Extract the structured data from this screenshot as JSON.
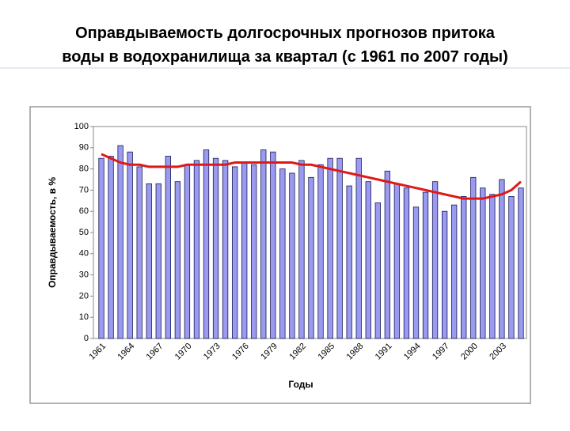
{
  "chart_data": {
    "type": "bar",
    "title": [
      "Оправдываемость долгосрочных прогнозов притока",
      "воды в водохранилища за квартал (с 1961 по 2007 годы)"
    ],
    "x_label": "Годы",
    "y_label": "Оправдываемость, в %",
    "categories": [
      "1961",
      null,
      null,
      "1964",
      null,
      null,
      "1967",
      null,
      null,
      "1970",
      null,
      null,
      "1973",
      null,
      null,
      "1976",
      null,
      null,
      "1979",
      null,
      null,
      "1982",
      null,
      null,
      "1985",
      null,
      null,
      "1988",
      null,
      null,
      "1991",
      null,
      null,
      "1994",
      null,
      null,
      "1997",
      null,
      null,
      "2000",
      null,
      null,
      "2003",
      null,
      null
    ],
    "series": [
      {
        "type": "bar",
        "color": "#9a9af0",
        "values": [
          85,
          86,
          91,
          88,
          81,
          73,
          73,
          86,
          74,
          82,
          84,
          89,
          85,
          84,
          81,
          83,
          82,
          89,
          88,
          80,
          78,
          84,
          76,
          82,
          85,
          85,
          72,
          85,
          74,
          64,
          79,
          73,
          71,
          62,
          69,
          74,
          60,
          63,
          67,
          76,
          71,
          68,
          75,
          67,
          71
        ]
      },
      {
        "type": "line",
        "color": "#e01818",
        "values": [
          87,
          85,
          83,
          82,
          82,
          81,
          81,
          81,
          81,
          82,
          82,
          82,
          82,
          82,
          83,
          83,
          83,
          83,
          83,
          83,
          83,
          82,
          82,
          81,
          80,
          79,
          78,
          77,
          76,
          75,
          74,
          73,
          72,
          71,
          70,
          69,
          68,
          67,
          66,
          66,
          66,
          67,
          68,
          70,
          74
        ]
      }
    ],
    "ylim": [
      0,
      100
    ],
    "yticks": [
      0,
      10,
      20,
      30,
      40,
      50,
      60,
      70,
      80,
      90,
      100
    ],
    "grid": false
  }
}
